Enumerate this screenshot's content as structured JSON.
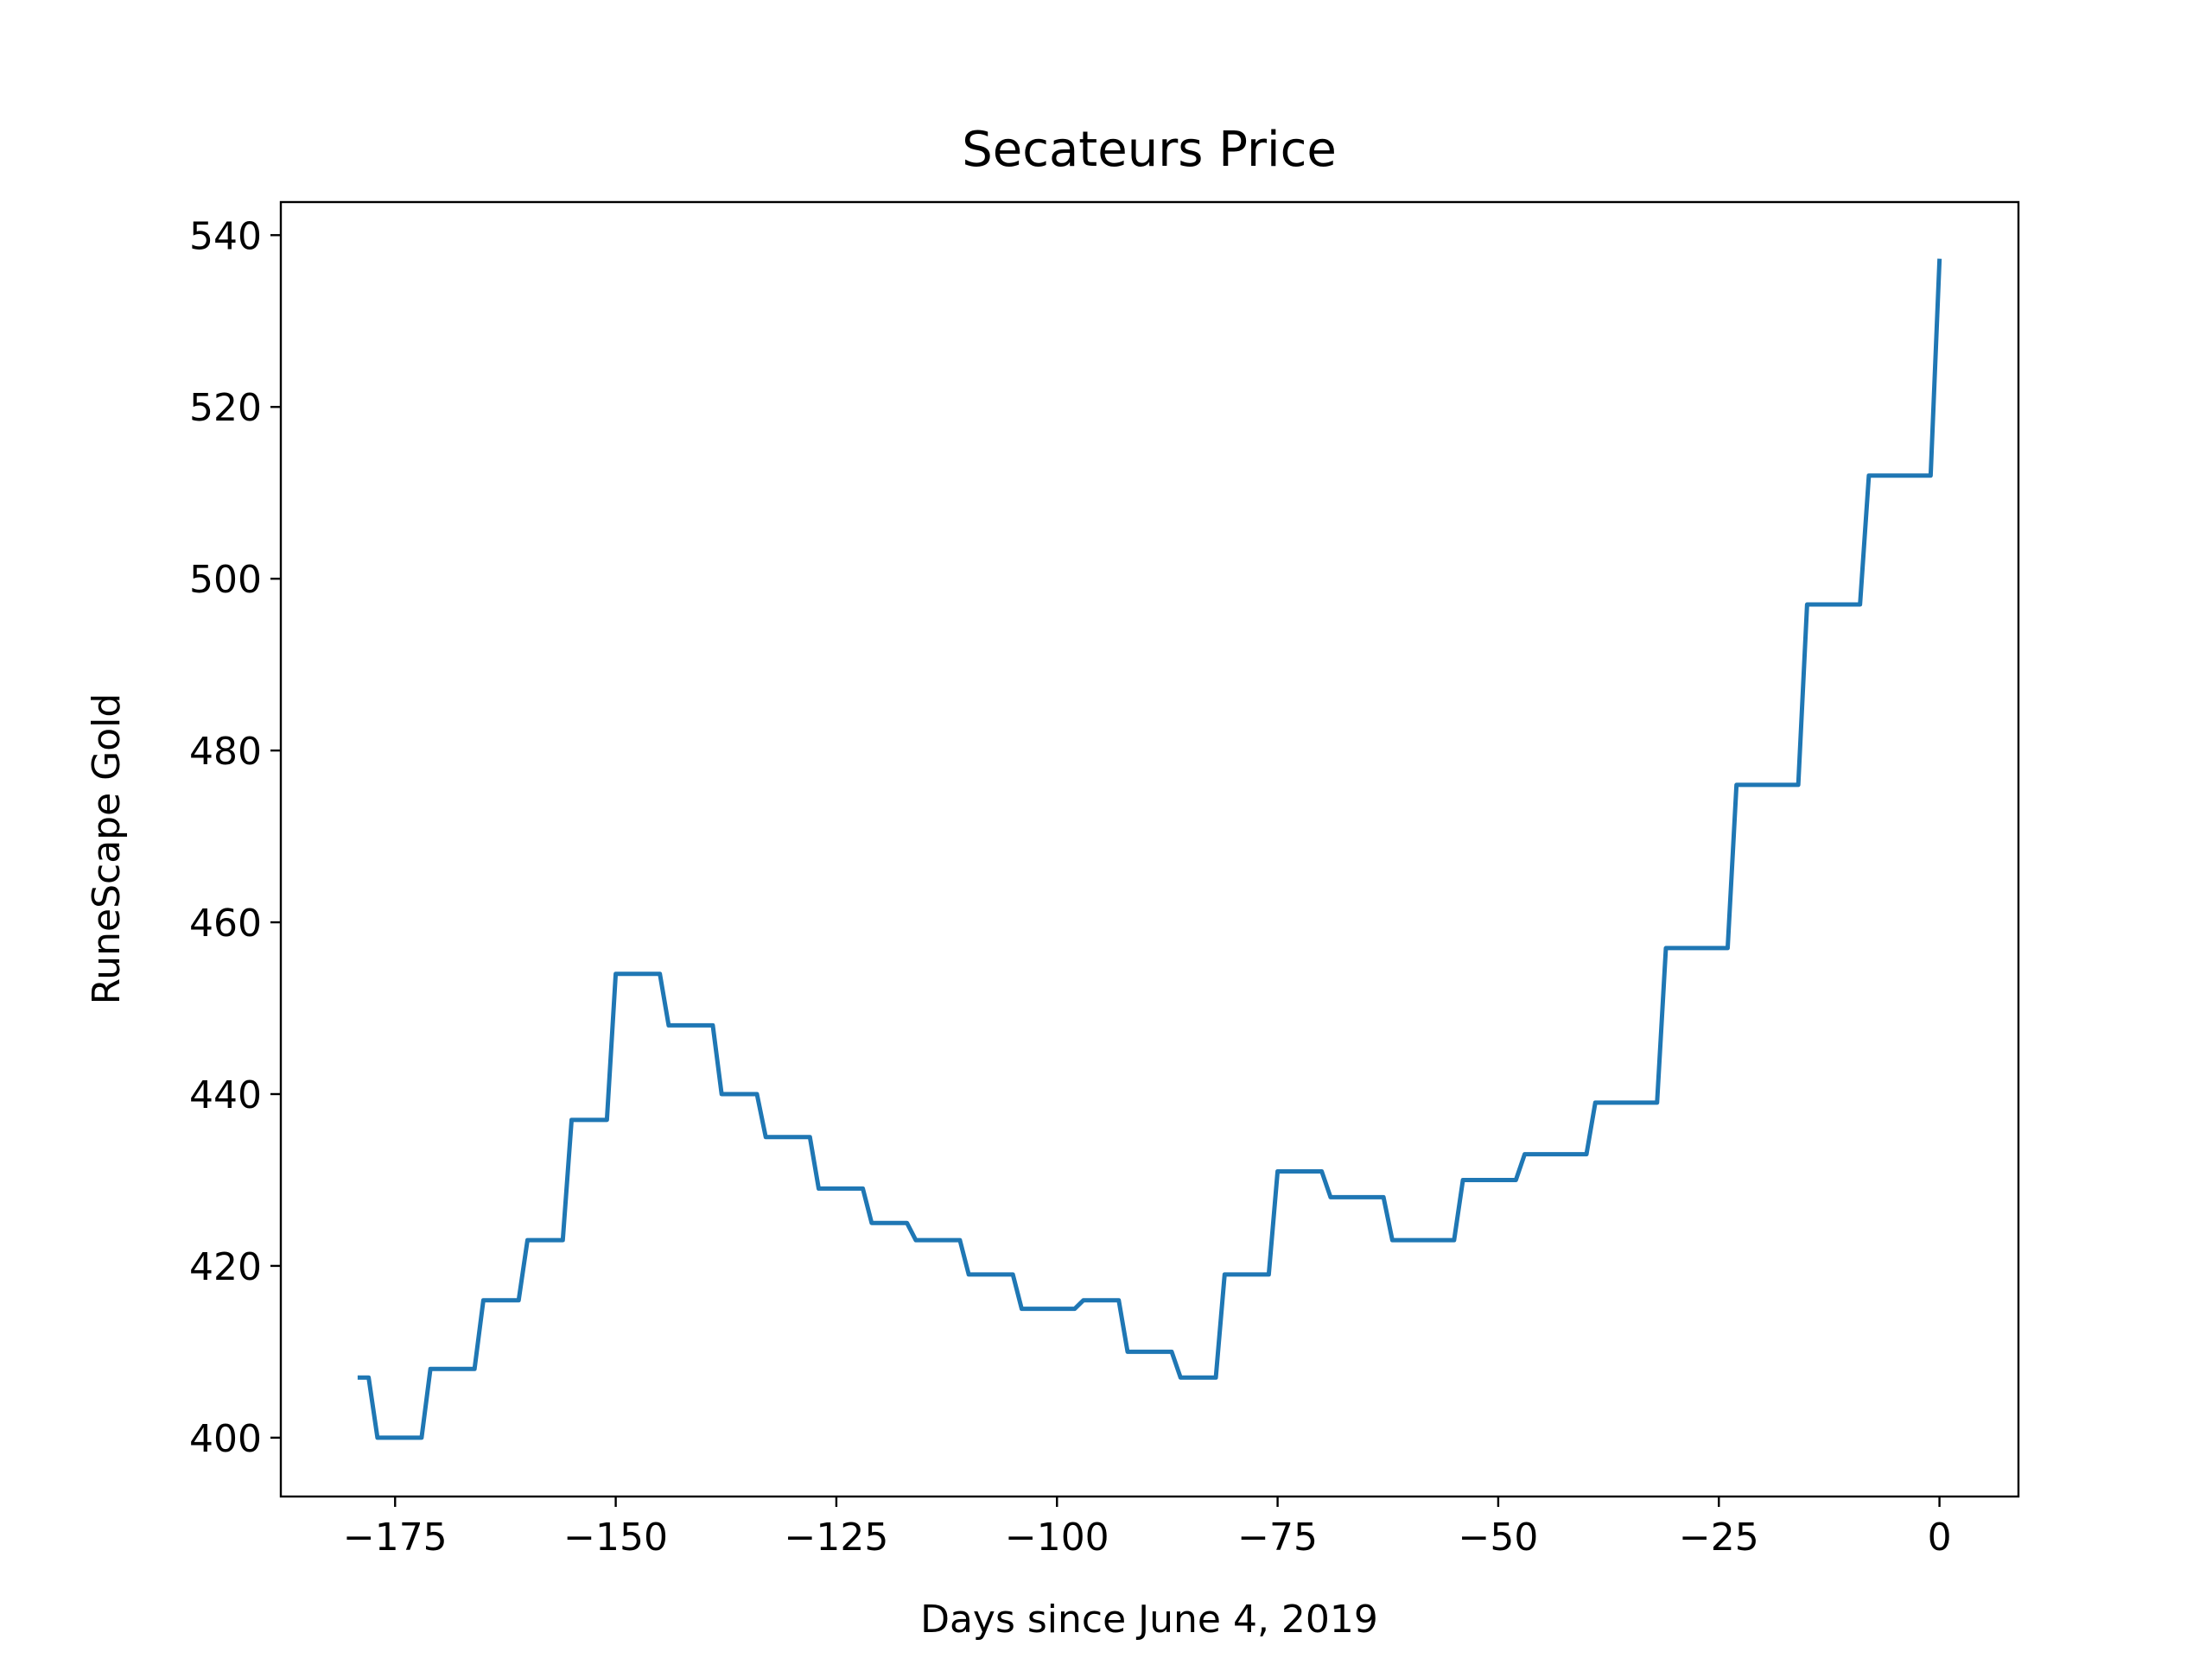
{
  "chart_data": {
    "type": "line",
    "title": "Secateurs Price",
    "x_label": "Days since June 4, 2019",
    "y_label": "RuneScape Gold",
    "color": "#1f77b4",
    "x": [
      -179,
      -178,
      -177,
      -172,
      -171,
      -166,
      -165,
      -161,
      -160,
      -156,
      -155,
      -151,
      -150,
      -145,
      -144,
      -139,
      -138,
      -134,
      -133,
      -128,
      -127,
      -122,
      -121,
      -117,
      -116,
      -111,
      -110,
      -105,
      -104,
      -98,
      -97,
      -93,
      -92,
      -87,
      -86,
      -82,
      -81,
      -76,
      -75,
      -70,
      -69,
      -63,
      -62,
      -55,
      -54,
      -48,
      -47,
      -40,
      -39,
      -32,
      -31,
      -24,
      -23,
      -16,
      -15,
      -9,
      -8,
      -1,
      0
    ],
    "values": [
      407,
      407,
      400,
      400,
      408,
      408,
      416,
      416,
      423,
      423,
      437,
      437,
      454,
      454,
      448,
      448,
      440,
      440,
      435,
      435,
      429,
      429,
      425,
      425,
      423,
      423,
      419,
      419,
      415,
      415,
      416,
      416,
      410,
      410,
      407,
      407,
      419,
      419,
      431,
      431,
      428,
      428,
      423,
      423,
      430,
      430,
      433,
      433,
      439,
      439,
      457,
      457,
      476,
      476,
      497,
      497,
      512,
      512,
      537
    ],
    "xlim": [
      -187.95,
      8.95
    ],
    "xticks": [
      {
        "value": -175,
        "label": "−175"
      },
      {
        "value": -150,
        "label": "−150"
      },
      {
        "value": -125,
        "label": "−125"
      },
      {
        "value": -100,
        "label": "−100"
      },
      {
        "value": -75,
        "label": "−75"
      },
      {
        "value": -50,
        "label": "−50"
      },
      {
        "value": -25,
        "label": "−25"
      },
      0
    ],
    "ylim": [
      393.15,
      543.85
    ],
    "yticks": [
      400,
      420,
      440,
      460,
      480,
      500,
      520,
      540
    ],
    "grid": false
  }
}
